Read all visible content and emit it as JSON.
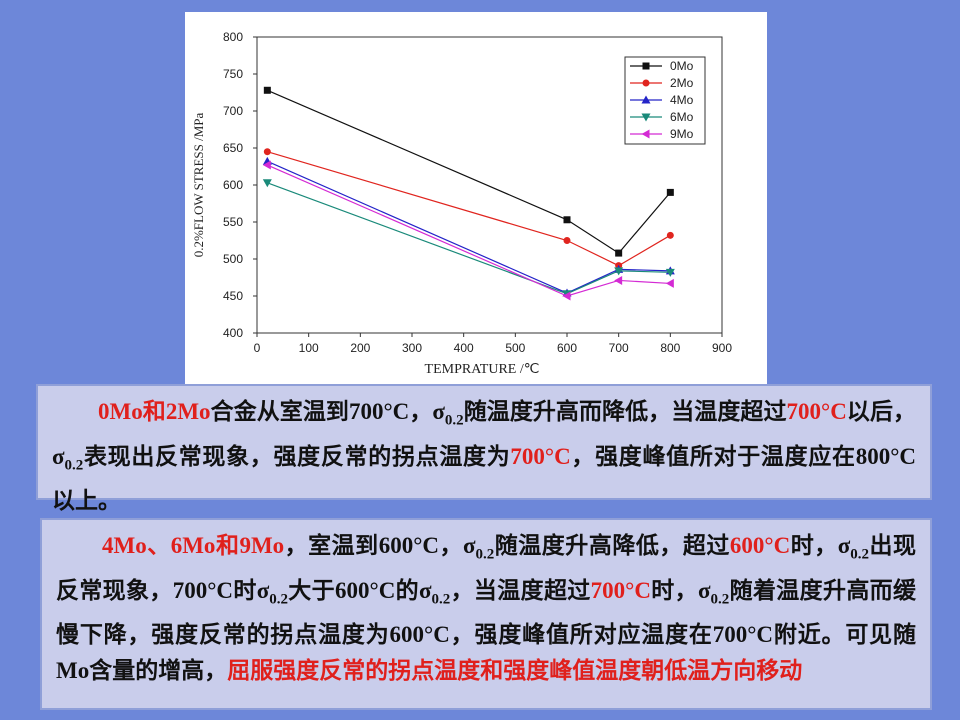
{
  "chart_data": {
    "type": "line",
    "xlabel": "TEMPRATURE /℃",
    "ylabel": "0.2%FLOW STRESS /MPa",
    "x": [
      20,
      600,
      700,
      800
    ],
    "xlim": [
      0,
      900
    ],
    "xticks": [
      0,
      100,
      200,
      300,
      400,
      500,
      600,
      700,
      800,
      900
    ],
    "ylim": [
      400,
      800
    ],
    "yticks": [
      400,
      450,
      500,
      550,
      600,
      650,
      700,
      750,
      800
    ],
    "legend": "top-right",
    "series": [
      {
        "name": "0Mo",
        "color": "#111111",
        "marker": "square",
        "values": [
          728,
          553,
          508,
          590
        ]
      },
      {
        "name": "2Mo",
        "color": "#e0251f",
        "marker": "circle",
        "values": [
          645,
          525,
          491,
          532
        ]
      },
      {
        "name": "4Mo",
        "color": "#2424c8",
        "marker": "triangle-up",
        "values": [
          632,
          454,
          486,
          484
        ]
      },
      {
        "name": "6Mo",
        "color": "#1a8a7a",
        "marker": "triangle-down",
        "values": [
          603,
          453,
          484,
          482
        ]
      },
      {
        "name": "9Mo",
        "color": "#d42ad4",
        "marker": "triangle-left",
        "values": [
          627,
          450,
          471,
          467
        ]
      }
    ]
  },
  "text_boxes": [
    {
      "runs": [
        {
          "text": "0Mo和2Mo",
          "color": "#e0201c"
        },
        {
          "text": "合金从室温到700°C，σ"
        },
        {
          "text": "0.2",
          "sub": true
        },
        {
          "text": "随温度升高而降低，当温度超过"
        },
        {
          "text": "700°C",
          "color": "#e0201c"
        },
        {
          "text": "以后，σ"
        },
        {
          "text": "0.2",
          "sub": true
        },
        {
          "text": "表现出反常现象，强度反常的拐点温度为"
        },
        {
          "text": "700°C",
          "color": "#e0201c"
        },
        {
          "text": "，强度峰值所对于温度应在800°C以上。"
        }
      ]
    },
    {
      "runs": [
        {
          "text": "4Mo、6Mo和9Mo",
          "color": "#e0201c"
        },
        {
          "text": "，室温到600°C，σ"
        },
        {
          "text": "0.2",
          "sub": true
        },
        {
          "text": "随温度升高降低，超过"
        },
        {
          "text": "600°C",
          "color": "#e0201c"
        },
        {
          "text": "时，σ"
        },
        {
          "text": "0.2",
          "sub": true
        },
        {
          "text": "出现反常现象，700°C时σ"
        },
        {
          "text": "0.2",
          "sub": true
        },
        {
          "text": "大于600°C的σ"
        },
        {
          "text": "0.2",
          "sub": true
        },
        {
          "text": "，当温度超过"
        },
        {
          "text": "700°C",
          "color": "#e0201c"
        },
        {
          "text": "时，σ"
        },
        {
          "text": "0.2",
          "sub": true
        },
        {
          "text": "随着温度升高而缓慢下降，强度反常的拐点温度为600°C，强度峰值所对应温度在700°C附近。可见随Mo含量的增高，"
        },
        {
          "text": "屈服强度反常的拐点温度和强度峰值温度朝低温方向移动",
          "color": "#e0201c"
        }
      ]
    }
  ]
}
